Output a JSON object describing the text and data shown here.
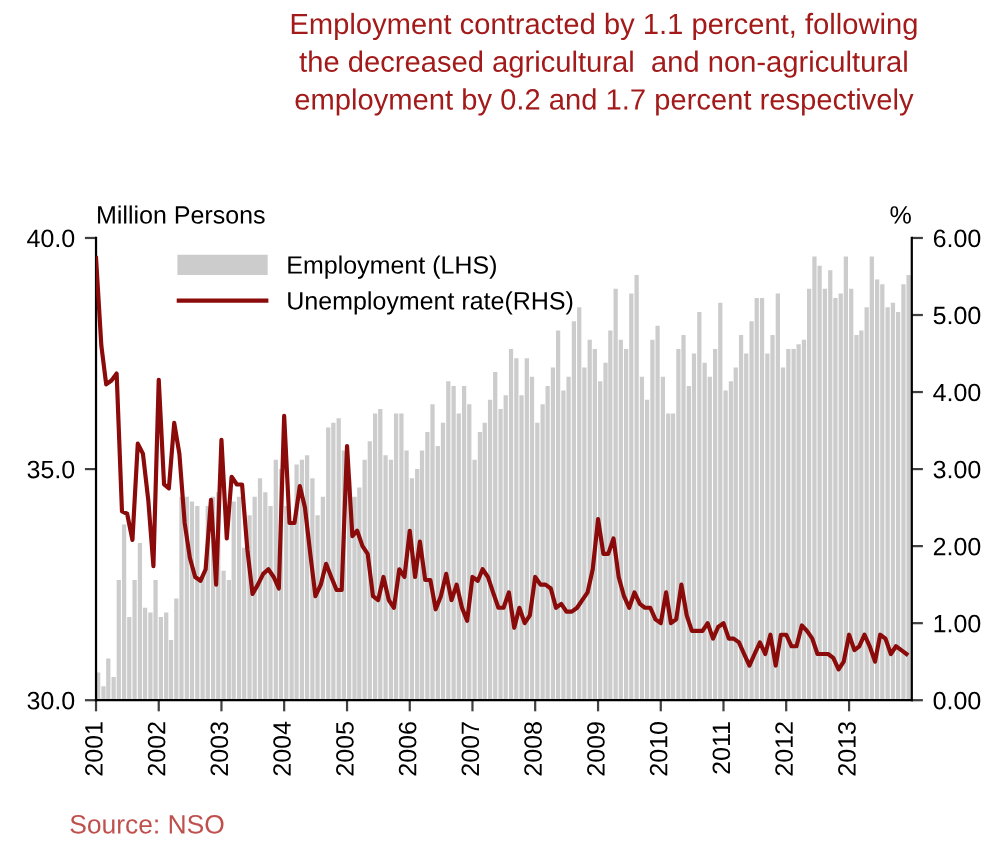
{
  "chart_data": {
    "type": "bar",
    "title": "Employment contracted by 1.1 percent, following\nthe decreased agricultural  and non-agricultural\nemployment by 0.2 and 1.7 percent respectively",
    "ylabel": "Million Persons",
    "y2label": "%",
    "annotations": [
      "Source: NSO"
    ],
    "x": [
      "2001-01",
      "2001-02",
      "2001-03",
      "2001-04",
      "2001-05",
      "2001-06",
      "2001-07",
      "2001-08",
      "2001-09",
      "2001-10",
      "2001-11",
      "2001-12",
      "2002-01",
      "2002-02",
      "2002-03",
      "2002-04",
      "2002-05",
      "2002-06",
      "2002-07",
      "2002-08",
      "2002-09",
      "2002-10",
      "2002-11",
      "2002-12",
      "2003-01",
      "2003-02",
      "2003-03",
      "2003-04",
      "2003-05",
      "2003-06",
      "2003-07",
      "2003-08",
      "2003-09",
      "2003-10",
      "2003-11",
      "2003-12",
      "2004-01",
      "2004-02",
      "2004-03",
      "2004-04",
      "2004-05",
      "2004-06",
      "2004-07",
      "2004-08",
      "2004-09",
      "2004-10",
      "2004-11",
      "2004-12",
      "2005-01",
      "2005-02",
      "2005-03",
      "2005-04",
      "2005-05",
      "2005-06",
      "2005-07",
      "2005-08",
      "2005-09",
      "2005-10",
      "2005-11",
      "2005-12",
      "2006-01",
      "2006-02",
      "2006-03",
      "2006-04",
      "2006-05",
      "2006-06",
      "2006-07",
      "2006-08",
      "2006-09",
      "2006-10",
      "2006-11",
      "2006-12",
      "2007-01",
      "2007-02",
      "2007-03",
      "2007-04",
      "2007-05",
      "2007-06",
      "2007-07",
      "2007-08",
      "2007-09",
      "2007-10",
      "2007-11",
      "2007-12",
      "2008-01",
      "2008-02",
      "2008-03",
      "2008-04",
      "2008-05",
      "2008-06",
      "2008-07",
      "2008-08",
      "2008-09",
      "2008-10",
      "2008-11",
      "2008-12",
      "2009-01",
      "2009-02",
      "2009-03",
      "2009-04",
      "2009-05",
      "2009-06",
      "2009-07",
      "2009-08",
      "2009-09",
      "2009-10",
      "2009-11",
      "2009-12",
      "2010-01",
      "2010-02",
      "2010-03",
      "2010-04",
      "2010-05",
      "2010-06",
      "2010-07",
      "2010-08",
      "2010-09",
      "2010-10",
      "2010-11",
      "2010-12",
      "2011-01",
      "2011-02",
      "2011-03",
      "2011-04",
      "2011-05",
      "2011-06",
      "2011-07",
      "2011-08",
      "2011-09",
      "2011-10",
      "2011-11",
      "2011-12",
      "2012-01",
      "2012-02",
      "2012-03",
      "2012-04",
      "2012-05",
      "2012-06",
      "2012-07",
      "2012-08",
      "2012-09",
      "2012-10",
      "2012-11",
      "2012-12",
      "2013-01",
      "2013-02",
      "2013-03",
      "2013-04",
      "2013-05",
      "2013-06",
      "2013-07",
      "2013-08",
      "2013-09",
      "2013-10",
      "2013-11",
      "2013-12"
    ],
    "series": [
      {
        "name": "Employment (LHS)",
        "color": "#cccccc",
        "values": [
          30.6,
          30.3,
          30.9,
          30.5,
          32.6,
          33.8,
          31.8,
          32.6,
          33.4,
          32.0,
          31.9,
          32.6,
          31.8,
          31.9,
          31.3,
          32.2,
          34.4,
          34.4,
          34.3,
          34.2,
          32.7,
          34.2,
          34.4,
          34.5,
          32.8,
          32.6,
          34.3,
          34.4,
          33.3,
          34.0,
          34.4,
          34.8,
          34.5,
          34.2,
          35.2,
          35.0,
          34.2,
          33.8,
          35.1,
          35.2,
          35.3,
          34.8,
          34.0,
          34.4,
          35.9,
          36.0,
          36.1,
          35.4,
          34.8,
          34.4,
          34.6,
          35.2,
          35.6,
          36.2,
          36.3,
          35.3,
          35.2,
          36.2,
          36.2,
          35.4,
          34.8,
          35.0,
          35.4,
          35.8,
          36.4,
          35.5,
          36.0,
          36.9,
          36.8,
          36.2,
          36.8,
          36.4,
          35.2,
          35.8,
          36.0,
          36.5,
          37.1,
          36.3,
          36.6,
          37.6,
          37.4,
          36.6,
          37.4,
          37.0,
          36.0,
          36.4,
          36.8,
          37.2,
          38.0,
          36.7,
          37.0,
          38.2,
          38.5,
          37.2,
          37.8,
          37.6,
          36.9,
          37.3,
          38.0,
          38.9,
          37.8,
          37.6,
          38.8,
          39.2,
          37.0,
          36.5,
          37.8,
          38.1,
          37.0,
          36.2,
          36.2,
          37.6,
          37.9,
          36.8,
          37.5,
          38.4,
          37.3,
          37.0,
          37.6,
          38.6,
          36.7,
          36.9,
          37.2,
          37.9,
          37.5,
          38.2,
          38.7,
          38.7,
          37.5,
          37.9,
          38.8,
          37.2,
          37.6,
          37.6,
          37.7,
          37.8,
          38.9,
          39.6,
          39.4,
          38.9,
          39.3,
          38.7,
          38.8,
          39.6,
          38.9,
          37.9,
          38.0,
          38.5,
          39.6,
          39.1,
          39.0,
          38.5,
          38.6,
          38.4,
          39.0,
          39.2
        ]
      },
      {
        "name": "Unemployment rate(RHS)",
        "type": "line",
        "axis": "y2",
        "color": "#8b0a0a",
        "values": [
          5.74,
          4.6,
          4.1,
          4.15,
          4.24,
          2.45,
          2.42,
          2.08,
          3.33,
          3.2,
          2.6,
          1.74,
          4.16,
          2.8,
          2.75,
          3.6,
          3.2,
          2.3,
          1.85,
          1.6,
          1.55,
          1.7,
          2.6,
          1.5,
          3.38,
          2.1,
          2.9,
          2.8,
          2.8,
          1.95,
          1.38,
          1.5,
          1.64,
          1.7,
          1.6,
          1.45,
          3.69,
          2.3,
          2.3,
          2.78,
          2.5,
          1.9,
          1.35,
          1.5,
          1.77,
          1.6,
          1.43,
          1.43,
          3.3,
          2.13,
          2.2,
          2.0,
          1.9,
          1.35,
          1.3,
          1.6,
          1.3,
          1.2,
          1.7,
          1.6,
          2.2,
          1.6,
          2.06,
          1.56,
          1.56,
          1.18,
          1.35,
          1.64,
          1.3,
          1.5,
          1.2,
          1.03,
          1.6,
          1.55,
          1.7,
          1.6,
          1.4,
          1.2,
          1.2,
          1.4,
          0.94,
          1.2,
          1.0,
          1.1,
          1.6,
          1.5,
          1.5,
          1.45,
          1.2,
          1.25,
          1.15,
          1.15,
          1.2,
          1.3,
          1.4,
          1.7,
          2.35,
          1.9,
          1.9,
          2.1,
          1.6,
          1.35,
          1.2,
          1.4,
          1.25,
          1.2,
          1.2,
          1.05,
          1.0,
          1.4,
          1.0,
          1.05,
          1.5,
          1.1,
          0.9,
          0.9,
          0.9,
          1.0,
          0.8,
          0.95,
          1.0,
          0.8,
          0.8,
          0.75,
          0.6,
          0.45,
          0.6,
          0.75,
          0.6,
          0.85,
          0.45,
          0.85,
          0.85,
          0.7,
          0.7,
          0.97,
          0.9,
          0.8,
          0.6,
          0.6,
          0.6,
          0.55,
          0.4,
          0.5,
          0.85,
          0.65,
          0.7,
          0.85,
          0.7,
          0.5,
          0.85,
          0.8,
          0.6,
          0.7,
          0.65,
          0.6
        ]
      }
    ],
    "xlim": [
      "2001-01",
      "2014-01"
    ],
    "xticks": [
      "2001",
      "2002",
      "2003",
      "2004",
      "2005",
      "2006",
      "2007",
      "2008",
      "2009",
      "2010",
      "2011",
      "2012",
      "2013"
    ],
    "ylim": [
      30,
      40
    ],
    "yticks": [
      {
        "value": 30,
        "label": "30.0"
      },
      {
        "value": 35,
        "label": "35.0"
      },
      {
        "value": 40,
        "label": "40.0"
      }
    ],
    "y2lim": [
      0,
      6
    ],
    "y2ticks": [
      {
        "value": 0,
        "label": "0.00"
      },
      {
        "value": 1,
        "label": "1.00"
      },
      {
        "value": 2,
        "label": "2.00"
      },
      {
        "value": 3,
        "label": "3.00"
      },
      {
        "value": 4,
        "label": "4.00"
      },
      {
        "value": 5,
        "label": "5.00"
      },
      {
        "value": 6,
        "label": "6.00"
      }
    ],
    "legend": "top left",
    "grid": false
  }
}
